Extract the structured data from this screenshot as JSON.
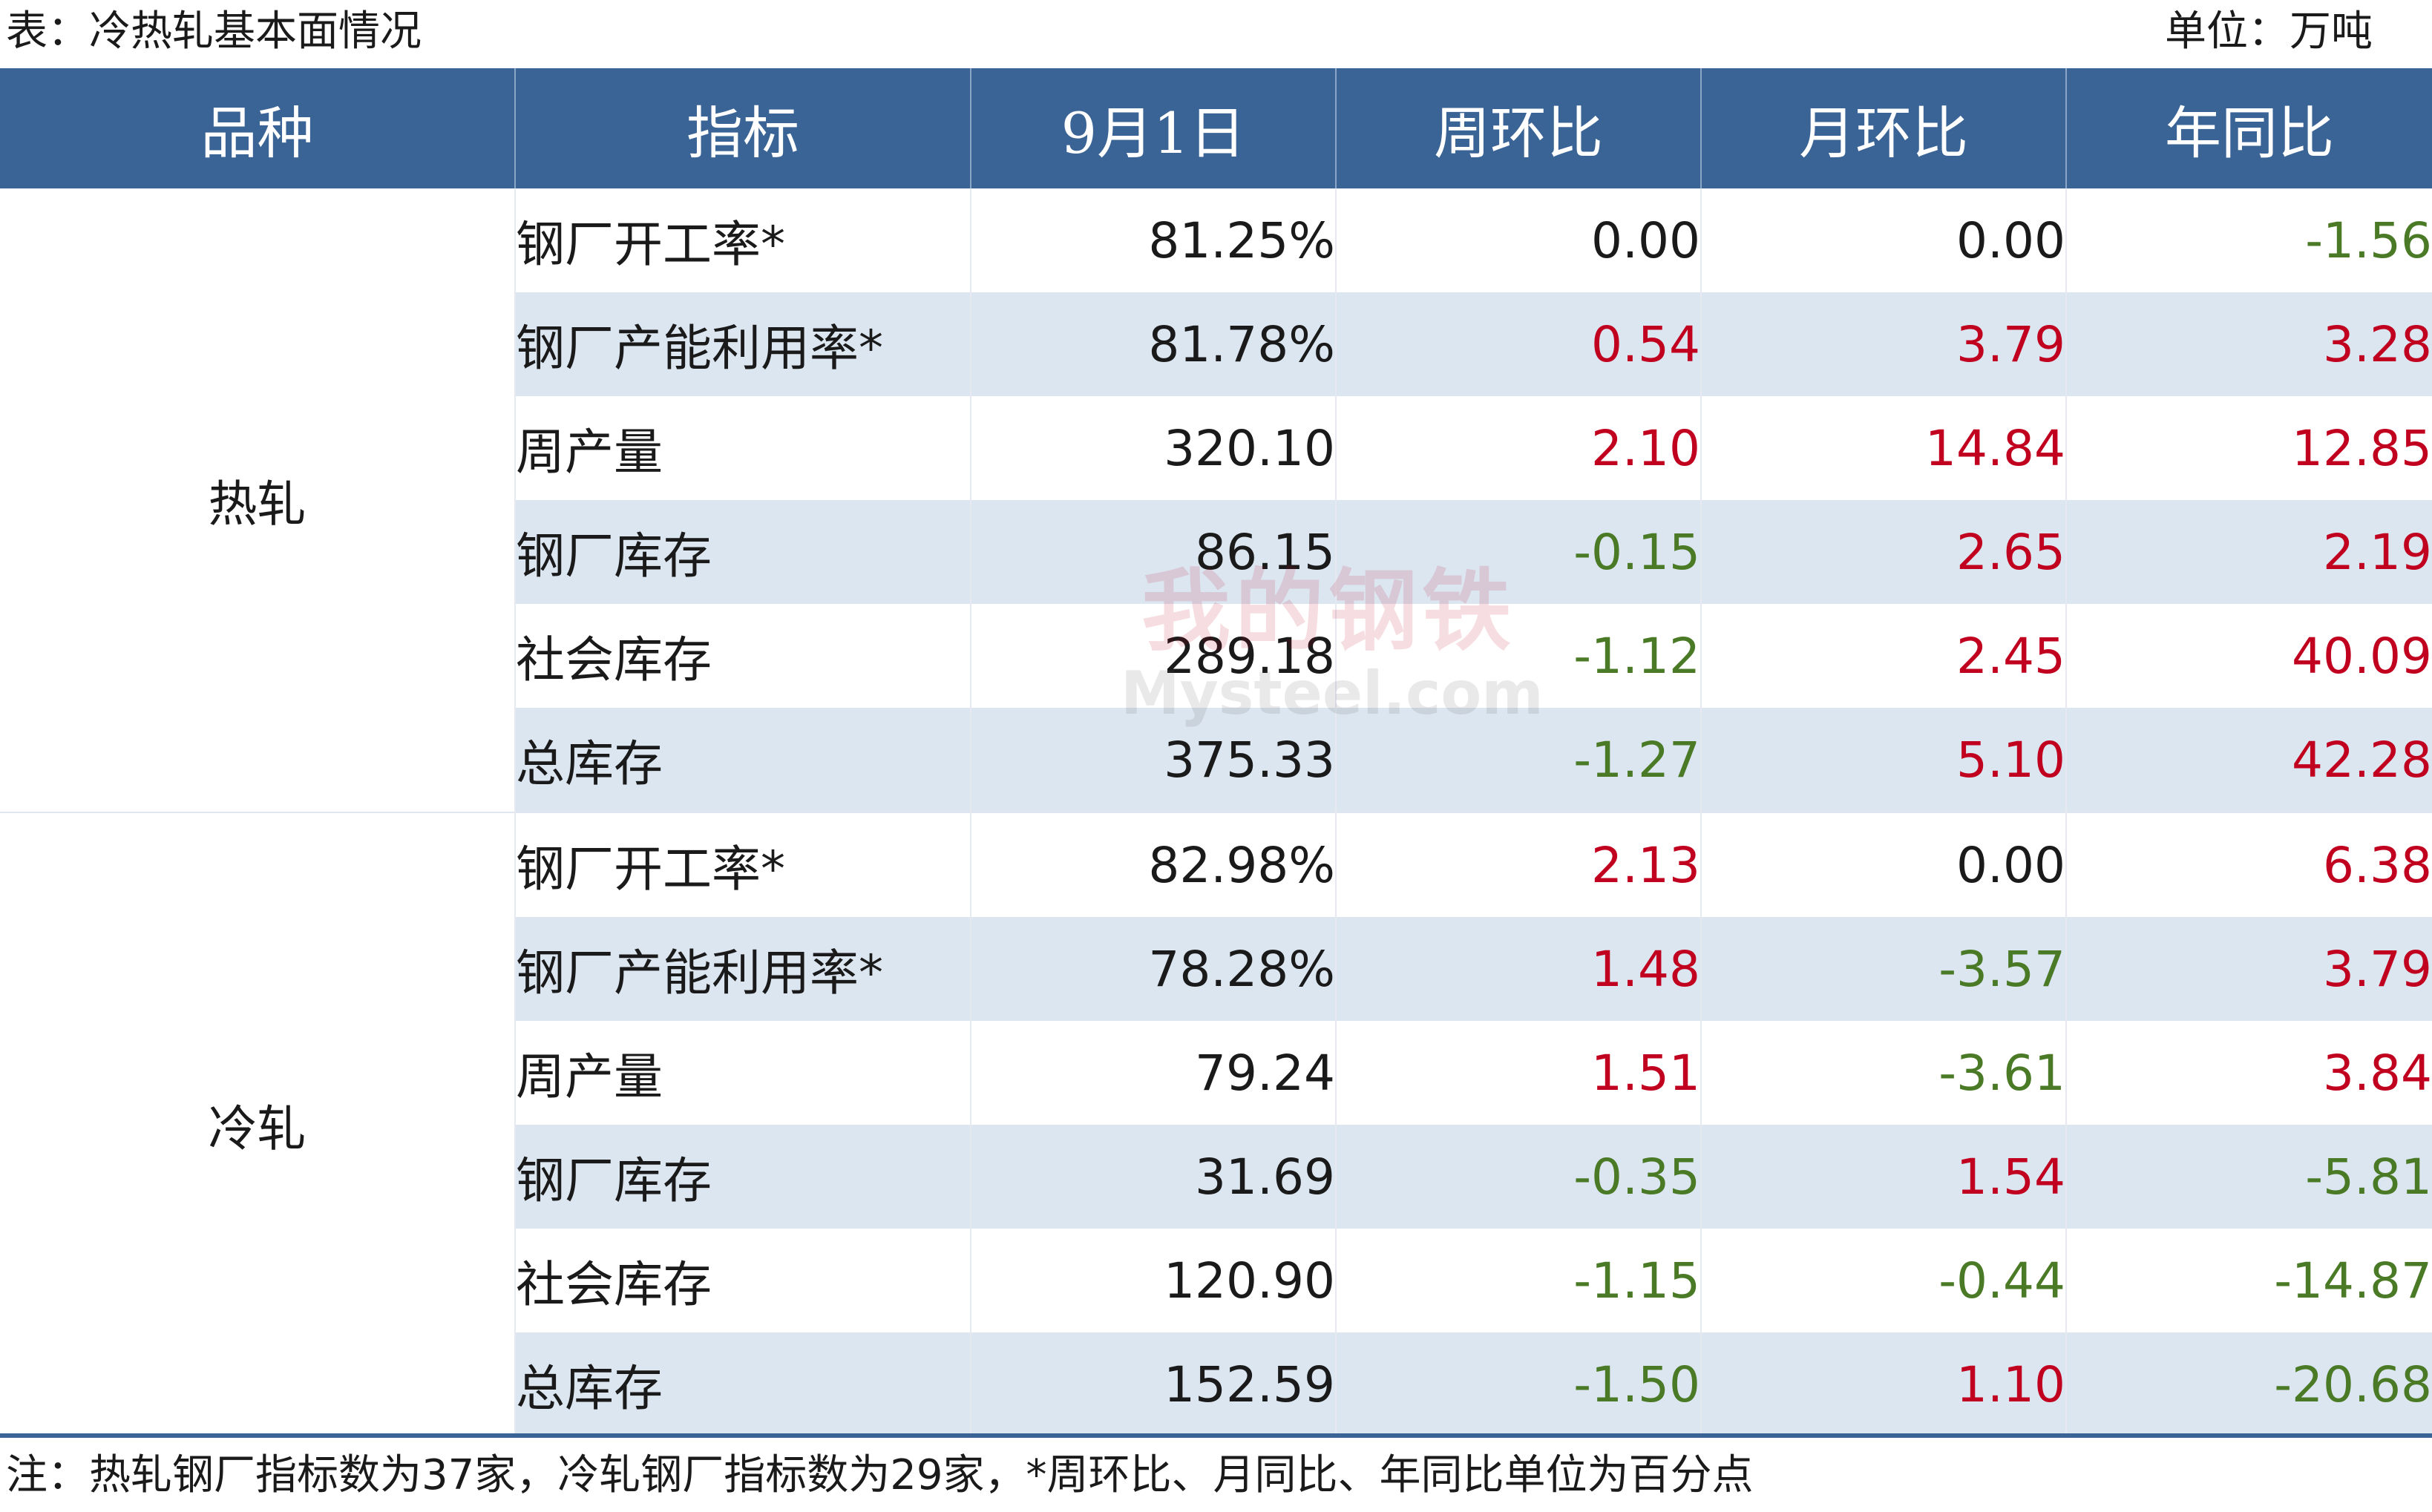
{
  "caption": {
    "left": "表：冷热轧基本面情况",
    "right": "单位：万吨"
  },
  "headers": [
    "品种",
    "指标",
    "9月1日",
    "周环比",
    "月环比",
    "年同比"
  ],
  "groups": [
    {
      "name": "热轧",
      "rows": [
        {
          "indicator": "钢厂开工率*",
          "value": "81.25%",
          "wow": "0.00",
          "mom": "0.00",
          "yoy": "-1.56"
        },
        {
          "indicator": "钢厂产能利用率*",
          "value": "81.78%",
          "wow": "0.54",
          "mom": "3.79",
          "yoy": "3.28"
        },
        {
          "indicator": "周产量",
          "value": "320.10",
          "wow": "2.10",
          "mom": "14.84",
          "yoy": "12.85"
        },
        {
          "indicator": "钢厂库存",
          "value": "86.15",
          "wow": "-0.15",
          "mom": "2.65",
          "yoy": "2.19"
        },
        {
          "indicator": "社会库存",
          "value": "289.18",
          "wow": "-1.12",
          "mom": "2.45",
          "yoy": "40.09"
        },
        {
          "indicator": "总库存",
          "value": "375.33",
          "wow": "-1.27",
          "mom": "5.10",
          "yoy": "42.28"
        }
      ]
    },
    {
      "name": "冷轧",
      "rows": [
        {
          "indicator": "钢厂开工率*",
          "value": "82.98%",
          "wow": "2.13",
          "mom": "0.00",
          "yoy": "6.38"
        },
        {
          "indicator": "钢厂产能利用率*",
          "value": "78.28%",
          "wow": "1.48",
          "mom": "-3.57",
          "yoy": "3.79"
        },
        {
          "indicator": "周产量",
          "value": "79.24",
          "wow": "1.51",
          "mom": "-3.61",
          "yoy": "3.84"
        },
        {
          "indicator": "钢厂库存",
          "value": "31.69",
          "wow": "-0.35",
          "mom": "1.54",
          "yoy": "-5.81"
        },
        {
          "indicator": "社会库存",
          "value": "120.90",
          "wow": "-1.15",
          "mom": "-0.44",
          "yoy": "-14.87"
        },
        {
          "indicator": "总库存",
          "value": "152.59",
          "wow": "-1.50",
          "mom": "1.10",
          "yoy": "-20.68"
        }
      ]
    }
  ],
  "note": "注：热轧钢厂指标数为37家，冷轧钢厂指标数为29家，*周环比、月同比、年同比单位为百分点",
  "watermark": {
    "cn": "我的钢铁",
    "en": "Mysteel.com"
  },
  "colors": {
    "header_bg": "#3a6496",
    "stripe_bg": "#dce6f1",
    "positive": "#c0001e",
    "negative": "#4a7a26"
  }
}
